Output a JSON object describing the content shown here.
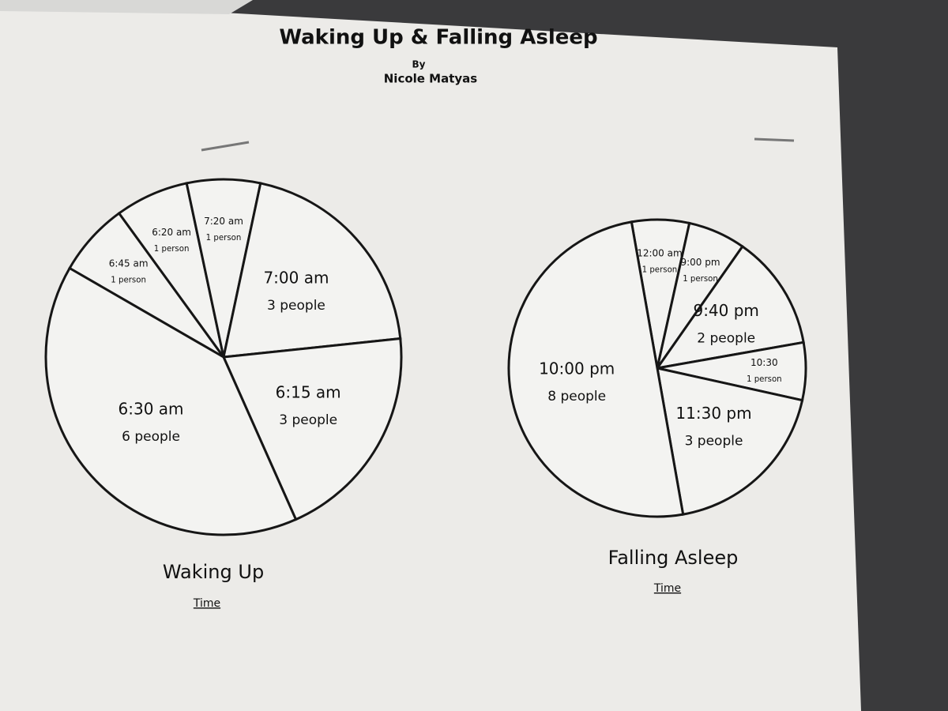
{
  "page": {
    "title": "Waking Up & Falling Asleep",
    "byline": "By",
    "author": "Nicole Matyas"
  },
  "chart_data": [
    {
      "type": "pie",
      "title": "Waking Up",
      "subtitle": "Time",
      "categories": [
        "6:45 am",
        "6:20 am",
        "7:20 am",
        "7:00 am",
        "6:15 am",
        "6:30 am"
      ],
      "values": [
        1,
        1,
        1,
        3,
        3,
        6
      ],
      "value_labels": [
        "1 person",
        "1 person",
        "1 person",
        "3 people",
        "3 people",
        "6 people"
      ]
    },
    {
      "type": "pie",
      "title": "Falling Asleep",
      "subtitle": "Time",
      "categories": [
        "12:00 am",
        "9:00 pm",
        "9:40 pm",
        "10:30",
        "11:30 pm",
        "10:00 pm"
      ],
      "values": [
        1,
        1,
        2,
        1,
        3,
        8
      ],
      "value_labels": [
        "1 person",
        "1 person",
        "2 people",
        "1 person",
        "3 people",
        "8 people"
      ]
    }
  ]
}
